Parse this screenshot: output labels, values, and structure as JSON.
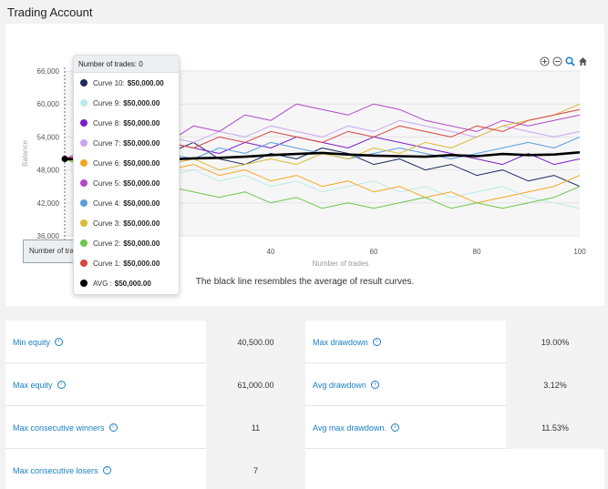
{
  "page": {
    "title": "Trading Account"
  },
  "toolbar": {
    "icons": [
      "zoom-in-icon",
      "zoom-out-icon",
      "search-icon",
      "home-icon"
    ]
  },
  "chart_data": {
    "type": "line",
    "title": "",
    "xlabel": "Number of trades",
    "ylabel": "Balance",
    "xlim": [
      0,
      100
    ],
    "ylim": [
      36000,
      66000
    ],
    "x_ticks": [
      "40",
      "60",
      "80",
      "100"
    ],
    "y_ticks": [
      "36,000",
      "42,000",
      "48,000",
      "54,000",
      "60,000",
      "66,000"
    ],
    "x": [
      0,
      5,
      10,
      15,
      20,
      25,
      30,
      35,
      40,
      45,
      50,
      55,
      60,
      65,
      70,
      75,
      80,
      85,
      90,
      95,
      100
    ],
    "series": [
      {
        "name": "Curve 10",
        "color": "#1f2b5e",
        "values": [
          50000,
          51000,
          50000,
          52000,
          51000,
          53000,
          50000,
          49000,
          51000,
          50000,
          52000,
          51000,
          49000,
          50000,
          48000,
          49000,
          47000,
          48000,
          46000,
          47000,
          45000
        ]
      },
      {
        "name": "Curve 9",
        "color": "#b8ece8",
        "values": [
          50000,
          49000,
          48000,
          49000,
          47000,
          48000,
          46000,
          47000,
          45000,
          46000,
          44000,
          45000,
          46000,
          44000,
          45000,
          43000,
          44000,
          45000,
          43000,
          42000,
          41000
        ]
      },
      {
        "name": "Curve 8",
        "color": "#7a1fc7",
        "values": [
          50000,
          51000,
          52000,
          51000,
          53000,
          52000,
          51000,
          53000,
          52000,
          54000,
          53000,
          52000,
          54000,
          53000,
          52000,
          51000,
          50000,
          49000,
          51000,
          49000,
          50000
        ]
      },
      {
        "name": "Curve 7",
        "color": "#c9a6f0",
        "values": [
          50000,
          51000,
          53000,
          52000,
          54000,
          53000,
          55000,
          54000,
          56000,
          55000,
          54000,
          56000,
          55000,
          57000,
          56000,
          55000,
          54000,
          56000,
          55000,
          54000,
          55000
        ]
      },
      {
        "name": "Curve 6",
        "color": "#f5a623",
        "values": [
          50000,
          49000,
          51000,
          50000,
          48000,
          49000,
          47000,
          48000,
          46000,
          47000,
          45000,
          46000,
          44000,
          45000,
          43000,
          44000,
          42000,
          43000,
          44000,
          45000,
          47000
        ]
      },
      {
        "name": "Curve 5",
        "color": "#b048c8",
        "values": [
          50000,
          52000,
          51000,
          54000,
          53000,
          56000,
          55000,
          58000,
          57000,
          60000,
          59000,
          58000,
          60000,
          59000,
          57000,
          56000,
          55000,
          57000,
          56000,
          57000,
          58000
        ]
      },
      {
        "name": "Curve 4",
        "color": "#5a9ee0",
        "values": [
          50000,
          51000,
          50000,
          52000,
          51000,
          50000,
          52000,
          51000,
          53000,
          52000,
          51000,
          50000,
          51000,
          52000,
          51000,
          50000,
          51000,
          52000,
          53000,
          52000,
          54000
        ]
      },
      {
        "name": "Curve 3",
        "color": "#d9bc35",
        "values": [
          50000,
          49000,
          50000,
          51000,
          49000,
          50000,
          48000,
          49000,
          50000,
          49000,
          51000,
          50000,
          52000,
          51000,
          53000,
          52000,
          54000,
          56000,
          57000,
          58000,
          60000
        ]
      },
      {
        "name": "Curve 2",
        "color": "#6cc84e",
        "values": [
          50000,
          48000,
          47000,
          46000,
          45000,
          44000,
          43000,
          44000,
          42000,
          43000,
          41000,
          42000,
          41000,
          42000,
          43000,
          41000,
          42000,
          41000,
          42000,
          43000,
          45000
        ]
      },
      {
        "name": "Curve 1",
        "color": "#d9443f",
        "values": [
          50000,
          51000,
          50000,
          52000,
          53000,
          52000,
          54000,
          53000,
          55000,
          54000,
          53000,
          55000,
          54000,
          56000,
          55000,
          54000,
          56000,
          55000,
          57000,
          58000,
          59000
        ]
      },
      {
        "name": "AVG",
        "color": "#000000",
        "values": [
          50000,
          49800,
          49600,
          49700,
          49900,
          50100,
          50200,
          50400,
          50700,
          50900,
          51100,
          50800,
          50600,
          50500,
          50400,
          50700,
          50500,
          50900,
          50700,
          50800,
          51200
        ]
      }
    ]
  },
  "tooltip": {
    "header": "Number of trades: 0",
    "rows": [
      {
        "name": "Curve 10:",
        "value": "$50,000.00",
        "color": "#1f2b5e"
      },
      {
        "name": "Curve 9:",
        "value": "$50,000.00",
        "color": "#b8ece8"
      },
      {
        "name": "Curve 8:",
        "value": "$50,000.00",
        "color": "#7a1fc7"
      },
      {
        "name": "Curve 7:",
        "value": "$50,000.00",
        "color": "#c9a6f0"
      },
      {
        "name": "Curve 6:",
        "value": "$50,000.00",
        "color": "#f5a623"
      },
      {
        "name": "Curve 5:",
        "value": "$50,000.00",
        "color": "#b048c8"
      },
      {
        "name": "Curve 4:",
        "value": "$50,000.00",
        "color": "#5a9ee0"
      },
      {
        "name": "Curve 3:",
        "value": "$50,000.00",
        "color": "#d9bc35"
      },
      {
        "name": "Curve 2:",
        "value": "$50,000.00",
        "color": "#6cc84e"
      },
      {
        "name": "Curve 1:",
        "value": "$50,000.00",
        "color": "#d9443f"
      },
      {
        "name": "AVG :",
        "value": "$50,000.00",
        "color": "#000000"
      }
    ]
  },
  "x_hover_label": "Number of trades",
  "chart_note": "The black line resembles the average of result curves.",
  "stats": {
    "rows": [
      {
        "l1": "Min equity",
        "v1": "40,500.00",
        "l2": "Max drawdown",
        "v2": "19.00%"
      },
      {
        "l1": "Max equity",
        "v1": "61,000.00",
        "l2": "Avg drawdown",
        "v2": "3.12%"
      },
      {
        "l1": "Max consecutive winners",
        "v1": "11",
        "l2": "Avg max drawdown.",
        "v2": "11.53%"
      },
      {
        "l1": "Max consecutive losers",
        "v1": "7",
        "l2": "",
        "v2": ""
      }
    ]
  }
}
